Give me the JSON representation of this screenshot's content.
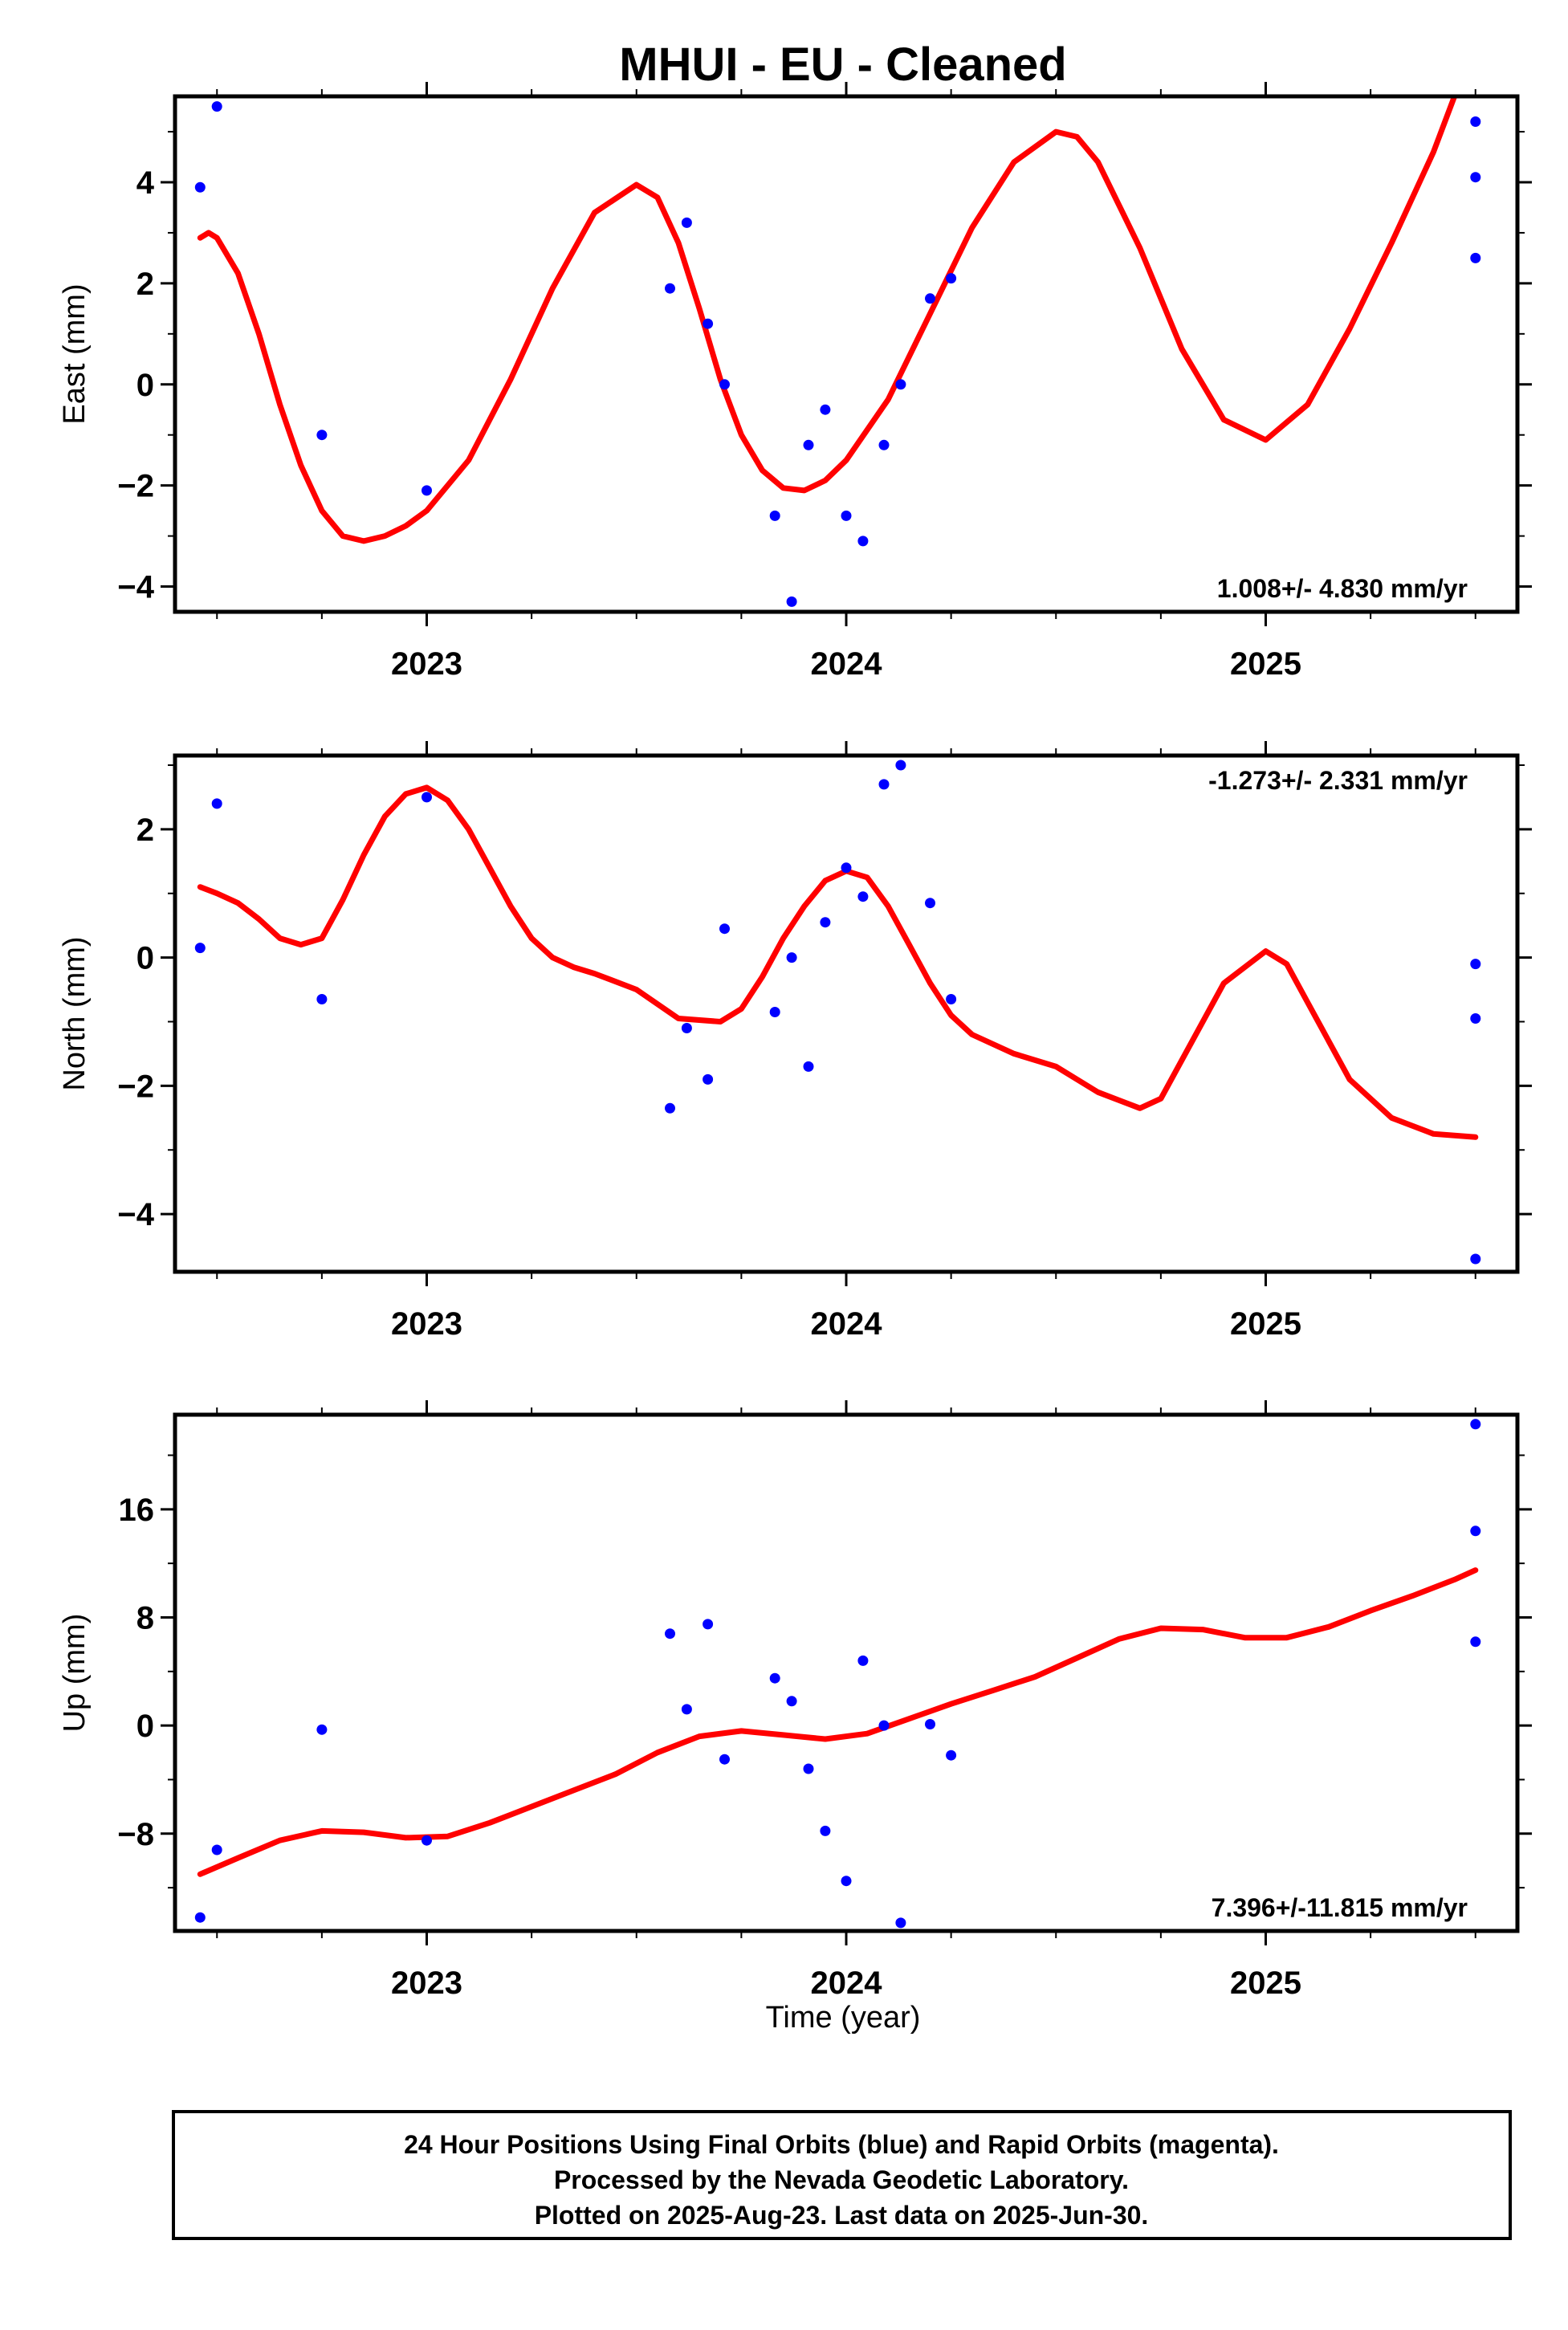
{
  "title": "MHUI  - EU - Cleaned",
  "xlabel": "Time (year)",
  "footer": {
    "line1": "24 Hour Positions Using Final Orbits (blue) and Rapid Orbits (magenta).",
    "line2": "Processed by the Nevada Geodetic Laboratory.",
    "line3": "Plotted on 2025-Aug-23. Last data on 2025-Jun-30."
  },
  "colors": {
    "final_points": "#0000ff",
    "fit": "#ff0000",
    "frame": "#000000"
  },
  "chart_data": [
    {
      "type": "scatter",
      "ylabel": "East (mm)",
      "rate_text": "1.008+/- 4.830 mm/yr",
      "rate_position": "bottom-right",
      "xlim": [
        2022.4,
        2025.6
      ],
      "ylim": [
        -4.5,
        5.7
      ],
      "xticks": [
        2023,
        2024,
        2025
      ],
      "yticks": [
        -4,
        -2,
        0,
        2,
        4
      ],
      "grid": false,
      "series": [
        {
          "kind": "points",
          "x": [
            2022.46,
            2022.5,
            2022.75,
            2023.0,
            2023.58,
            2023.62,
            2023.67,
            2023.71,
            2023.83,
            2023.87,
            2023.91,
            2023.95,
            2024.0,
            2024.04,
            2024.09,
            2024.13,
            2024.2,
            2024.25,
            2025.5,
            2025.5,
            2025.5
          ],
          "y": [
            3.9,
            5.5,
            -1.0,
            -2.1,
            1.9,
            3.2,
            1.2,
            0.0,
            -2.6,
            -4.3,
            -1.2,
            -0.5,
            -2.6,
            -3.1,
            -1.2,
            0.0,
            1.7,
            2.1,
            5.2,
            4.1,
            2.5
          ]
        },
        {
          "kind": "fit",
          "x": [
            2022.46,
            2022.48,
            2022.5,
            2022.55,
            2022.6,
            2022.65,
            2022.7,
            2022.75,
            2022.8,
            2022.85,
            2022.9,
            2022.95,
            2023.0,
            2023.1,
            2023.2,
            2023.3,
            2023.4,
            2023.5,
            2023.55,
            2023.6,
            2023.65,
            2023.7,
            2023.75,
            2023.8,
            2023.85,
            2023.9,
            2023.95,
            2024.0,
            2024.1,
            2024.2,
            2024.3,
            2024.4,
            2024.5,
            2024.55,
            2024.6,
            2024.7,
            2024.8,
            2024.9,
            2025.0,
            2025.1,
            2025.2,
            2025.3,
            2025.4,
            2025.45
          ],
          "y": [
            2.9,
            3.0,
            2.9,
            2.2,
            1.0,
            -0.4,
            -1.6,
            -2.5,
            -3.0,
            -3.1,
            -3.0,
            -2.8,
            -2.5,
            -1.5,
            0.1,
            1.9,
            3.4,
            3.95,
            3.7,
            2.8,
            1.5,
            0.1,
            -1.0,
            -1.7,
            -2.05,
            -2.1,
            -1.9,
            -1.5,
            -0.3,
            1.4,
            3.1,
            4.4,
            5.0,
            4.9,
            4.4,
            2.7,
            0.7,
            -0.7,
            -1.1,
            -0.4,
            1.1,
            2.8,
            4.6,
            5.7
          ]
        }
      ]
    },
    {
      "type": "scatter",
      "ylabel": "North (mm)",
      "rate_text": "-1.273+/- 2.331 mm/yr",
      "rate_position": "top-right",
      "xlim": [
        2022.4,
        2025.6
      ],
      "ylim": [
        -4.9,
        3.15
      ],
      "xticks": [
        2023,
        2024,
        2025
      ],
      "yticks": [
        -4,
        -2,
        0,
        2
      ],
      "grid": false,
      "series": [
        {
          "kind": "points",
          "x": [
            2022.46,
            2022.5,
            2022.75,
            2023.0,
            2023.58,
            2023.62,
            2023.67,
            2023.71,
            2023.83,
            2023.87,
            2023.91,
            2023.95,
            2024.0,
            2024.04,
            2024.09,
            2024.13,
            2024.2,
            2024.25,
            2025.5,
            2025.5,
            2025.5
          ],
          "y": [
            0.15,
            2.4,
            -0.65,
            2.5,
            -2.35,
            -1.1,
            -1.9,
            0.45,
            -0.85,
            0.0,
            -1.7,
            0.55,
            1.4,
            0.95,
            2.7,
            3.0,
            0.85,
            -0.65,
            -0.1,
            -0.95,
            -4.7
          ]
        },
        {
          "kind": "fit",
          "x": [
            2022.46,
            2022.5,
            2022.55,
            2022.6,
            2022.65,
            2022.7,
            2022.75,
            2022.8,
            2022.85,
            2022.9,
            2022.95,
            2023.0,
            2023.05,
            2023.1,
            2023.15,
            2023.2,
            2023.25,
            2023.3,
            2023.35,
            2023.4,
            2023.5,
            2023.6,
            2023.7,
            2023.75,
            2023.8,
            2023.85,
            2023.9,
            2023.95,
            2024.0,
            2024.05,
            2024.1,
            2024.15,
            2024.2,
            2024.25,
            2024.3,
            2024.4,
            2024.5,
            2024.6,
            2024.7,
            2024.75,
            2024.8,
            2024.9,
            2025.0,
            2025.05,
            2025.1,
            2025.2,
            2025.3,
            2025.4,
            2025.5
          ],
          "y": [
            1.1,
            1.0,
            0.85,
            0.6,
            0.3,
            0.2,
            0.3,
            0.9,
            1.6,
            2.2,
            2.55,
            2.65,
            2.45,
            2.0,
            1.4,
            0.8,
            0.3,
            0.0,
            -0.15,
            -0.25,
            -0.5,
            -0.95,
            -1.0,
            -0.8,
            -0.3,
            0.3,
            0.8,
            1.2,
            1.35,
            1.25,
            0.8,
            0.2,
            -0.4,
            -0.9,
            -1.2,
            -1.5,
            -1.7,
            -2.1,
            -2.35,
            -2.2,
            -1.6,
            -0.4,
            0.1,
            -0.1,
            -0.7,
            -1.9,
            -2.5,
            -2.75,
            -2.8
          ]
        }
      ]
    },
    {
      "type": "scatter",
      "ylabel": "Up (mm)",
      "rate_text": "7.396+/-11.815 mm/yr",
      "rate_position": "bottom-right",
      "xlim": [
        2022.4,
        2025.6
      ],
      "ylim": [
        -15.2,
        23.0
      ],
      "xticks": [
        2023,
        2024,
        2025
      ],
      "yticks": [
        -8,
        0,
        8,
        16
      ],
      "grid": false,
      "series": [
        {
          "kind": "points",
          "x": [
            2022.46,
            2022.5,
            2022.75,
            2023.0,
            2023.58,
            2023.62,
            2023.67,
            2023.71,
            2023.83,
            2023.87,
            2023.91,
            2023.95,
            2024.0,
            2024.04,
            2024.09,
            2024.13,
            2024.2,
            2024.25,
            2025.5,
            2025.5,
            2025.5
          ],
          "y": [
            -14.2,
            -9.2,
            -0.3,
            -8.5,
            6.8,
            1.2,
            7.5,
            -2.5,
            3.5,
            1.8,
            -3.2,
            -7.8,
            -11.5,
            4.8,
            0.0,
            -14.6,
            0.1,
            -2.2,
            22.3,
            14.4,
            6.2
          ]
        },
        {
          "kind": "fit",
          "x": [
            2022.46,
            2022.55,
            2022.65,
            2022.75,
            2022.85,
            2022.95,
            2023.05,
            2023.15,
            2023.25,
            2023.35,
            2023.45,
            2023.55,
            2023.65,
            2023.75,
            2023.85,
            2023.95,
            2024.05,
            2024.15,
            2024.25,
            2024.35,
            2024.45,
            2024.55,
            2024.65,
            2024.75,
            2024.85,
            2024.95,
            2025.05,
            2025.15,
            2025.25,
            2025.35,
            2025.45,
            2025.5
          ],
          "y": [
            -11.0,
            -9.8,
            -8.5,
            -7.8,
            -7.9,
            -8.3,
            -8.2,
            -7.2,
            -6.0,
            -4.8,
            -3.6,
            -2.0,
            -0.8,
            -0.4,
            -0.7,
            -1.0,
            -0.6,
            0.5,
            1.6,
            2.6,
            3.6,
            5.0,
            6.4,
            7.2,
            7.1,
            6.5,
            6.5,
            7.3,
            8.5,
            9.6,
            10.8,
            11.5
          ]
        }
      ]
    }
  ]
}
